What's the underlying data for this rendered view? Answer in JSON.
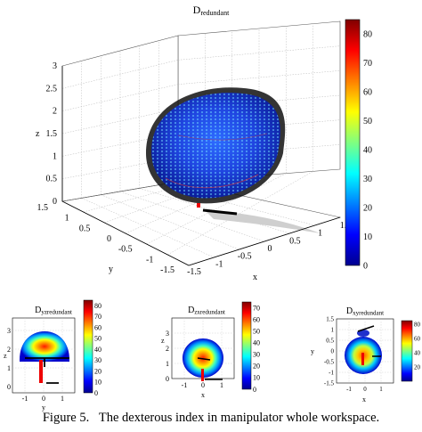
{
  "caption": {
    "label": "Figure 5.",
    "text": "The dexterous index in manipulator whole workspace."
  },
  "chart_data": [
    {
      "type": "scatter",
      "projection": "3d",
      "title": {
        "main": "D",
        "sub": "redundant"
      },
      "xlabel": "x",
      "ylabel": "y",
      "zlabel": "z",
      "xticks": [
        "1.5",
        "1",
        "0.5",
        "0",
        "-0.5",
        "-1",
        "-1.5"
      ],
      "yticks": [
        "1.5",
        "1",
        "0.5",
        "0",
        "-0.5",
        "-1",
        "-1.5"
      ],
      "zticks": [
        "0",
        "0.5",
        "1",
        "1.5",
        "2",
        "2.5",
        "3"
      ],
      "xlim": [
        -1.5,
        1.5
      ],
      "ylim": [
        -1.5,
        1.5
      ],
      "zlim": [
        0,
        3
      ],
      "colorbar": {
        "ticks": [
          "0",
          "10",
          "20",
          "30",
          "40",
          "50",
          "60",
          "70",
          "80"
        ],
        "range": [
          0,
          85
        ]
      },
      "grid": true,
      "description": "hemispherical workspace cloud centred at origin, radius ~1.2, z 0 to ~1.5, mostly low values"
    },
    {
      "type": "scatter",
      "title": {
        "main": "D",
        "sub": "yzredundant"
      },
      "xlabel": "y",
      "ylabel": "z",
      "xticks": [
        "-1",
        "0",
        "1"
      ],
      "yticks": [
        "0",
        "1",
        "2",
        "3"
      ],
      "colorbar": {
        "ticks": [
          "0",
          "10",
          "20",
          "30",
          "40",
          "50",
          "60",
          "70",
          "80"
        ],
        "range": [
          0,
          85
        ]
      }
    },
    {
      "type": "scatter",
      "title": {
        "main": "D",
        "sub": "zxredundant"
      },
      "xlabel": "x",
      "ylabel": "z",
      "xticks": [
        "-1",
        "0",
        "1"
      ],
      "yticks": [
        "0",
        "1",
        "2",
        "3"
      ],
      "colorbar": {
        "ticks": [
          "0",
          "10",
          "20",
          "30",
          "40",
          "50",
          "60",
          "70"
        ],
        "range": [
          0,
          75
        ]
      }
    },
    {
      "type": "scatter",
      "title": {
        "main": "D",
        "sub": "xyredundant"
      },
      "xlabel": "x",
      "ylabel": "y",
      "xticks": [
        "-1",
        "0",
        "1"
      ],
      "yticks": [
        "-1.5",
        "-1",
        "-0.5",
        "0",
        "0.5",
        "1",
        "1.5"
      ],
      "colorbar": {
        "ticks": [
          "20",
          "40",
          "60",
          "80"
        ],
        "range": [
          0,
          85
        ]
      }
    }
  ]
}
